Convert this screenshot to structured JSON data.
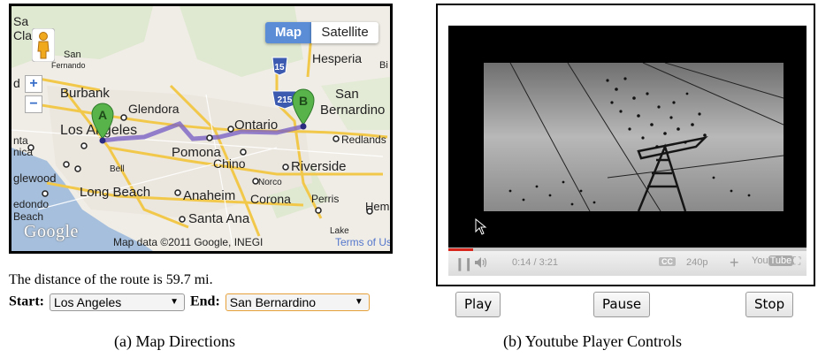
{
  "map": {
    "map_type_buttons": {
      "map": "Map",
      "satellite": "Satellite"
    },
    "zoom": {
      "in": "+",
      "out": "−"
    },
    "markers": {
      "start": "A",
      "end": "B"
    },
    "highways": [
      "15",
      "215"
    ],
    "places": [
      "Sa",
      "Cla",
      "San",
      "Fernando",
      "Hesperia",
      "Bi",
      "d",
      "Burbank",
      "Glendora",
      "San",
      "Bernardino",
      "Los Angeles",
      "Ontario",
      "Redlands",
      "nta",
      "nica",
      "Pomona",
      "Chino",
      "Riverside",
      "Bell",
      "Norco",
      "glewood",
      "Long Beach",
      "Anaheim",
      "Corona",
      "Perris",
      "Heme",
      "edondo",
      "Beach",
      "Santa Ana",
      "Lake"
    ],
    "google_logo": "Google",
    "attribution": "Map data ©2011 Google, INEGI",
    "terms_link": "Terms of Use",
    "colors": {
      "route": "#7b63c4",
      "map_button": "#5b8dd6",
      "highway": "#f2c84b",
      "water": "#a5bfdd"
    }
  },
  "directions": {
    "distance_text": "The distance of the route is 59.7 mi.",
    "start_label": "Start:",
    "start_value": "Los Angeles",
    "end_label": "End:",
    "end_value": "San Bernardino"
  },
  "captions": {
    "a": "(a) Map Directions",
    "b": "(b) Youtube Player Controls"
  },
  "player": {
    "time": "0:14 / 3:21",
    "progress_fraction": 0.07,
    "quality": "240p",
    "cc_label": "CC",
    "youtube_logo": {
      "you": "You",
      "tube": "Tube"
    },
    "progress_color": "#d9261c"
  },
  "buttons": {
    "play": "Play",
    "pause": "Pause",
    "stop": "Stop"
  }
}
